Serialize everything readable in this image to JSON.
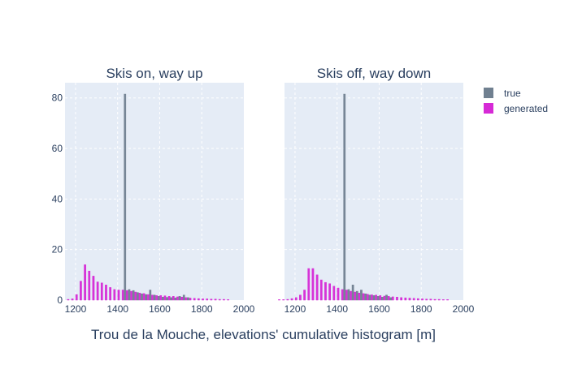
{
  "chart_data": {
    "type": "bar",
    "xlabel": "Trou de la Mouche, elevations' cumulative histogram [m]",
    "xlim": [
      1150,
      2000
    ],
    "ylim": [
      0,
      86
    ],
    "x_ticks": [
      1200,
      1400,
      1600,
      1800,
      2000
    ],
    "y_ticks": [
      0,
      20,
      40,
      60,
      80
    ],
    "grid": true,
    "legend_position": "top-right",
    "colors": {
      "true": "#708090",
      "generated": "#d62ad6",
      "plot_bg": "#e5ecf6"
    },
    "legend": [
      {
        "key": "true",
        "label": "true"
      },
      {
        "key": "generated",
        "label": "generated"
      }
    ],
    "bin_width": 20,
    "panels": [
      {
        "title": "Skis on, way up",
        "series": [
          {
            "name": "true",
            "x": [
              1430,
              1450,
              1470,
              1490,
              1510,
              1530,
              1550,
              1570,
              1590,
              1610,
              1630,
              1650,
              1670,
              1690,
              1710,
              1730
            ],
            "values": [
              81.5,
              4.2,
              3.8,
              3.0,
              2.5,
              2.2,
              4.0,
              2.0,
              1.5,
              1.2,
              1.1,
              1.0,
              0.9,
              1.5,
              2.0,
              1.0
            ]
          },
          {
            "name": "generated",
            "x": [
              1170,
              1190,
              1210,
              1230,
              1250,
              1270,
              1290,
              1310,
              1330,
              1350,
              1370,
              1390,
              1410,
              1430,
              1450,
              1470,
              1490,
              1510,
              1530,
              1550,
              1570,
              1590,
              1610,
              1630,
              1650,
              1670,
              1690,
              1710,
              1730,
              1750,
              1770,
              1790,
              1810,
              1830,
              1850,
              1870,
              1890,
              1910,
              1930
            ],
            "values": [
              0.3,
              0.5,
              2.2,
              7.5,
              14.0,
              11.5,
              9.5,
              7.2,
              6.8,
              6.0,
              5.0,
              4.2,
              4.0,
              4.0,
              3.8,
              3.5,
              3.2,
              2.8,
              2.6,
              2.2,
              2.0,
              1.8,
              1.8,
              1.7,
              1.5,
              1.5,
              1.3,
              1.2,
              1.0,
              0.8,
              0.7,
              0.6,
              0.5,
              0.5,
              0.4,
              0.4,
              0.3,
              0.3,
              0.2
            ]
          }
        ]
      },
      {
        "title": "Skis off, way down",
        "series": [
          {
            "name": "true",
            "x": [
              1430,
              1450,
              1470,
              1490,
              1510,
              1530,
              1550,
              1570,
              1590,
              1610,
              1630,
              1650
            ],
            "values": [
              81.5,
              4.2,
              6.0,
              3.5,
              4.0,
              2.5,
              2.0,
              1.8,
              1.5,
              1.2,
              2.0,
              1.0
            ]
          },
          {
            "name": "generated",
            "x": [
              1130,
              1150,
              1170,
              1190,
              1210,
              1230,
              1250,
              1270,
              1290,
              1310,
              1330,
              1350,
              1370,
              1390,
              1410,
              1430,
              1450,
              1470,
              1490,
              1510,
              1530,
              1550,
              1570,
              1590,
              1610,
              1630,
              1650,
              1670,
              1690,
              1710,
              1730,
              1750,
              1770,
              1790,
              1810,
              1830,
              1850,
              1870,
              1890,
              1910,
              1930
            ],
            "values": [
              0.2,
              0.2,
              0.3,
              0.6,
              1.0,
              2.0,
              4.0,
              12.5,
              12.5,
              10.0,
              8.0,
              7.0,
              6.5,
              5.5,
              4.8,
              4.2,
              4.0,
              3.5,
              3.2,
              2.8,
              2.6,
              2.3,
              2.1,
              2.0,
              1.8,
              1.6,
              1.5,
              1.3,
              1.2,
              1.0,
              0.9,
              0.8,
              0.7,
              0.6,
              0.5,
              0.4,
              0.4,
              0.3,
              0.3,
              0.2,
              0.2
            ]
          }
        ]
      }
    ]
  }
}
